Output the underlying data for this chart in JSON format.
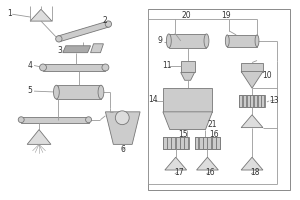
{
  "bg": "white",
  "lc": "#999999",
  "ec": "#777777",
  "fc": "#cccccc",
  "fc2": "#dddddd",
  "tc": "#333333",
  "fs": 5.5,
  "lw": 0.6
}
